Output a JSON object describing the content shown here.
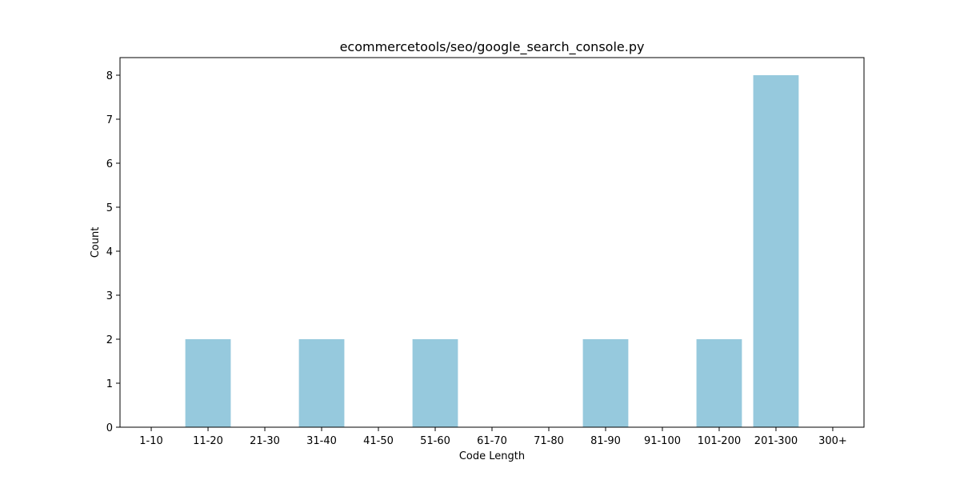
{
  "chart_data": {
    "type": "bar",
    "title": "ecommercetools/seo/google_search_console.py",
    "xlabel": "Code Length",
    "ylabel": "Count",
    "categories": [
      "1-10",
      "11-20",
      "21-30",
      "31-40",
      "41-50",
      "51-60",
      "61-70",
      "71-80",
      "81-90",
      "91-100",
      "101-200",
      "201-300",
      "300+"
    ],
    "values": [
      0,
      2,
      0,
      2,
      0,
      2,
      0,
      0,
      2,
      0,
      2,
      8,
      0
    ],
    "ylim": [
      0,
      8.4
    ],
    "yticks": [
      0,
      1,
      2,
      3,
      4,
      5,
      6,
      7,
      8
    ],
    "bar_color": "#96c9dd",
    "grid": false,
    "legend": "none"
  }
}
